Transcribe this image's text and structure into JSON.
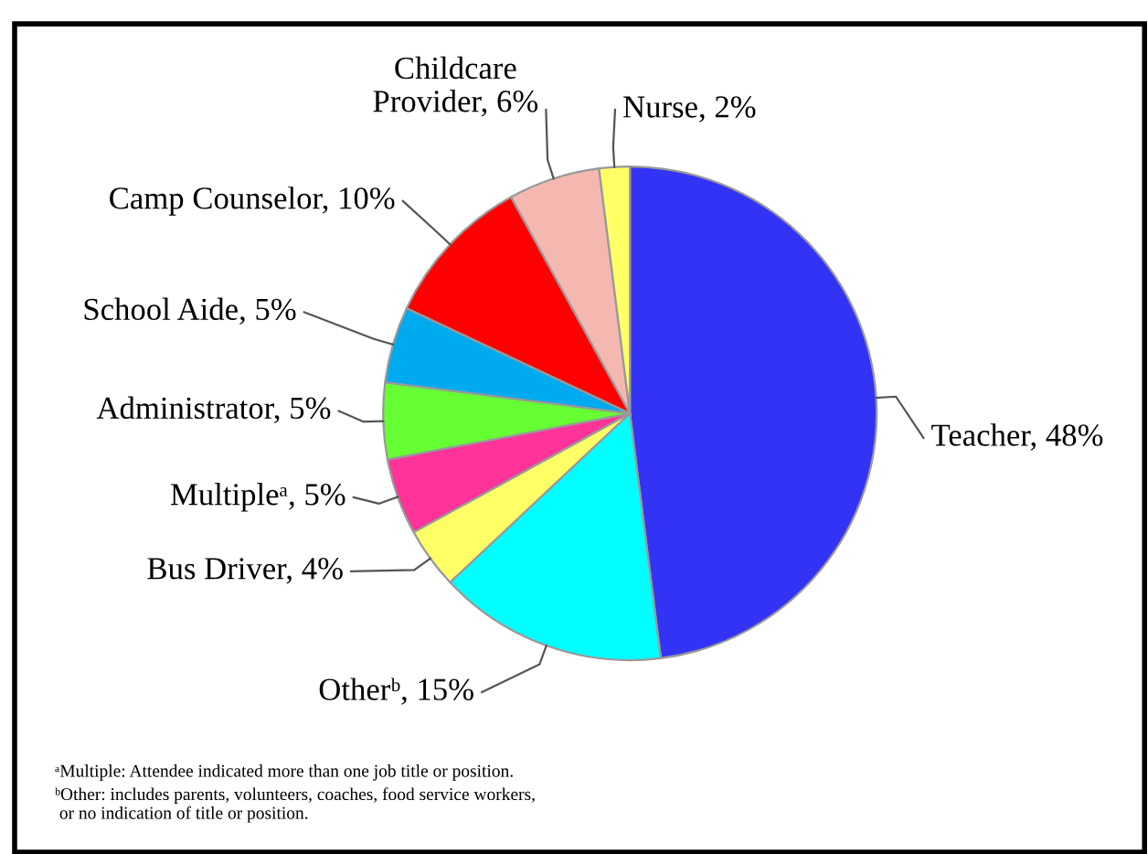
{
  "chart_data": {
    "type": "pie",
    "categories": [
      "Teacher",
      "Otherᵇ",
      "Bus Driver",
      "Multipleᵃ",
      "Administrator",
      "School Aide",
      "Camp Counselor",
      "Childcare Provider",
      "Nurse"
    ],
    "values": [
      48,
      15,
      4,
      5,
      5,
      5,
      10,
      6,
      2
    ],
    "value_labels": [
      "48%",
      "15%",
      "4%",
      "5%",
      "5%",
      "5%",
      "10%",
      "6%",
      "2%"
    ],
    "colors": [
      "#3333f5",
      "#00ffff",
      "#ffff66",
      "#ff3399",
      "#66ff33",
      "#00aaee",
      "#ff0000",
      "#f4b8b0",
      "#ffff66"
    ],
    "annotations": [
      "ᵃMultiple: Attendee indicated more than one job title or position.",
      "ᵇOther: includes parents, volunteers, coaches, food service workers,\n or no indication of title or position."
    ]
  }
}
